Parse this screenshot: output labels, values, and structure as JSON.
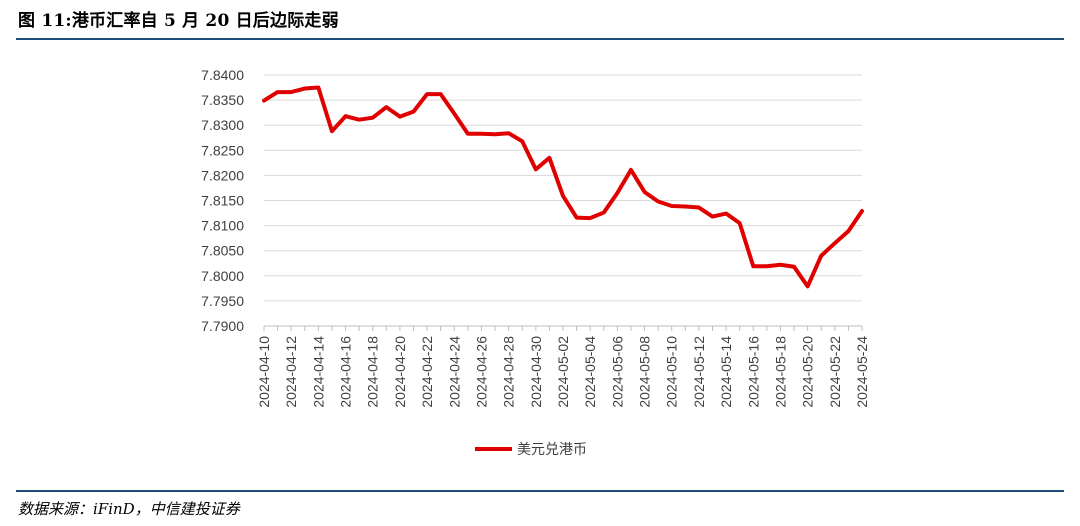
{
  "figure": {
    "title": "图 11:港币汇率自 5 月 20 日后边际走弱",
    "source": "数据来源：iFinD，中信建投证券"
  },
  "colors": {
    "series": "#e00000",
    "rule": "#1f4e79",
    "gridline": "#d9d9d9",
    "axis": "#bfbfbf"
  },
  "chart_data": {
    "type": "line",
    "title": "",
    "xlabel": "",
    "ylabel": "",
    "ylim": [
      7.79,
      7.84
    ],
    "yticks": [
      "7.7900",
      "7.7950",
      "7.8000",
      "7.8050",
      "7.8100",
      "7.8150",
      "7.8200",
      "7.8250",
      "7.8300",
      "7.8350",
      "7.8400"
    ],
    "grid": true,
    "legend": "bottom-center",
    "x": [
      "2024-04-10",
      "2024-04-11",
      "2024-04-12",
      "2024-04-13",
      "2024-04-14",
      "2024-04-15",
      "2024-04-16",
      "2024-04-17",
      "2024-04-18",
      "2024-04-19",
      "2024-04-20",
      "2024-04-21",
      "2024-04-22",
      "2024-04-23",
      "2024-04-24",
      "2024-04-25",
      "2024-04-26",
      "2024-04-27",
      "2024-04-28",
      "2024-04-29",
      "2024-04-30",
      "2024-05-01",
      "2024-05-02",
      "2024-05-03",
      "2024-05-04",
      "2024-05-05",
      "2024-05-06",
      "2024-05-07",
      "2024-05-08",
      "2024-05-09",
      "2024-05-10",
      "2024-05-11",
      "2024-05-12",
      "2024-05-13",
      "2024-05-14",
      "2024-05-15",
      "2024-05-16",
      "2024-05-17",
      "2024-05-18",
      "2024-05-19",
      "2024-05-20",
      "2024-05-21",
      "2024-05-22",
      "2024-05-23",
      "2024-05-24"
    ],
    "xticklabels": [
      "2024-04-10",
      "2024-04-12",
      "2024-04-14",
      "2024-04-16",
      "2024-04-18",
      "2024-04-20",
      "2024-04-22",
      "2024-04-24",
      "2024-04-26",
      "2024-04-28",
      "2024-04-30",
      "2024-05-02",
      "2024-05-04",
      "2024-05-06",
      "2024-05-08",
      "2024-05-10",
      "2024-05-12",
      "2024-05-14",
      "2024-05-16",
      "2024-05-18",
      "2024-05-20",
      "2024-05-22",
      "2024-05-24"
    ],
    "series": [
      {
        "name": "美元兑港币",
        "values": [
          7.8349,
          7.8366,
          7.8366,
          7.8373,
          7.8375,
          7.8288,
          7.8318,
          7.8311,
          7.8315,
          7.8336,
          7.8317,
          7.8327,
          7.8362,
          7.8362,
          7.8323,
          7.8283,
          7.8283,
          7.8282,
          7.8284,
          7.8268,
          7.8212,
          7.8235,
          7.8159,
          7.8116,
          7.8115,
          7.8126,
          7.8165,
          7.8211,
          7.8167,
          7.8148,
          7.8139,
          7.8138,
          7.8136,
          7.8118,
          7.8124,
          7.8105,
          7.8019,
          7.8019,
          7.8022,
          7.8018,
          7.7979,
          7.804,
          7.8065,
          7.8089,
          7.8129
        ]
      }
    ]
  }
}
